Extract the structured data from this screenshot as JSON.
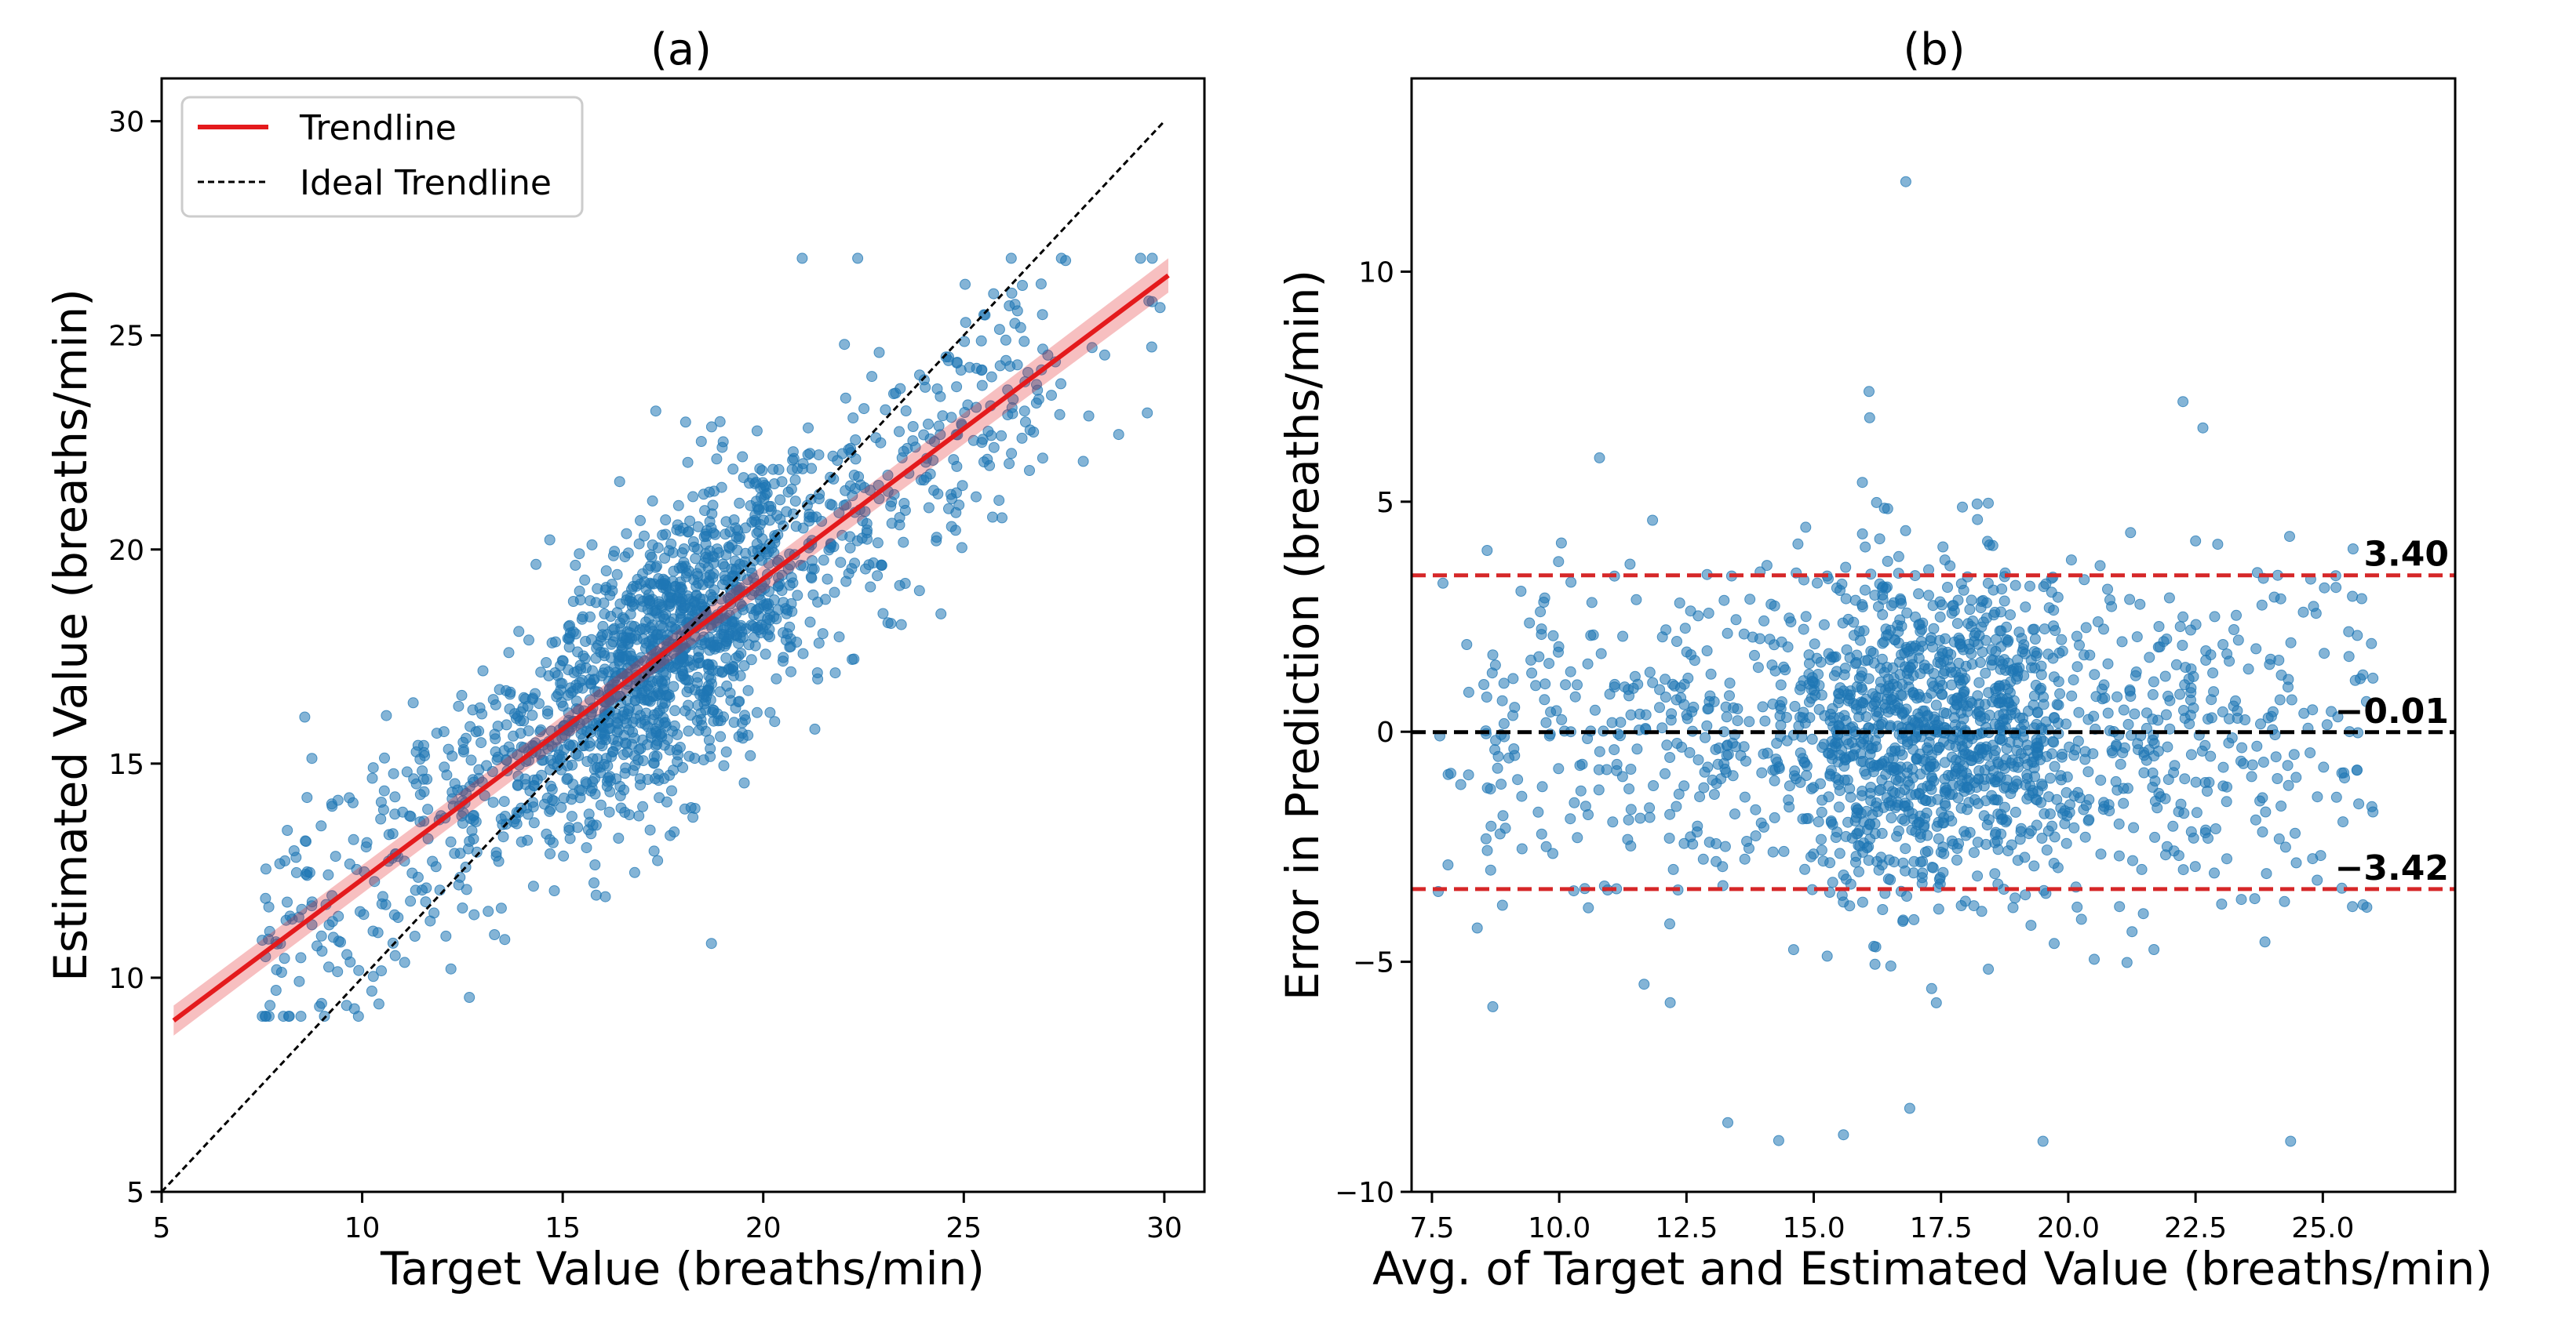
{
  "chart_data": [
    {
      "type": "scatter",
      "title": "(a)",
      "xlabel": "Target Value (breaths/min)",
      "ylabel": "Estimated Value (breaths/min)",
      "xlim": [
        5,
        31
      ],
      "ylim": [
        5,
        31
      ],
      "xticks": [
        5,
        10,
        15,
        20,
        25,
        30
      ],
      "xtick_labels": [
        "5",
        "10",
        "15",
        "20",
        "25",
        "30"
      ],
      "yticks": [
        5,
        10,
        15,
        20,
        25,
        30
      ],
      "ytick_labels": [
        "5",
        "10",
        "15",
        "20",
        "25",
        "30"
      ],
      "grid": false,
      "legend": {
        "position": "top-left",
        "entries": [
          {
            "label": "Trendline",
            "color": "#e41a1c",
            "style": "solid"
          },
          {
            "label": "Ideal Trendline",
            "color": "#000000",
            "style": "dashed"
          }
        ]
      },
      "series": [
        {
          "name": "Samples",
          "kind": "scatter",
          "color": "#1f77b4",
          "opacity": 0.55,
          "n_points": 1800
        },
        {
          "name": "Trendline",
          "kind": "line",
          "color": "#e41a1c",
          "x": [
            5.3,
            30.1
          ],
          "y": [
            9.0,
            26.4
          ],
          "ci_halfwidth": [
            0.35,
            0.3,
            0.4
          ]
        },
        {
          "name": "Ideal Trendline",
          "kind": "line",
          "color": "#000000",
          "style": "dashed",
          "x": [
            5,
            30
          ],
          "y": [
            5,
            30
          ]
        }
      ]
    },
    {
      "type": "scatter",
      "title": "(b)",
      "xlabel": "Avg. of Target and Estimated Value (breaths/min)",
      "ylabel": "Error in Prediction (breaths/min)",
      "xlim": [
        7.1,
        27.6
      ],
      "ylim": [
        -10,
        14.2
      ],
      "xticks": [
        7.5,
        10.0,
        12.5,
        15.0,
        17.5,
        20.0,
        22.5,
        25.0
      ],
      "xtick_labels": [
        "7.5",
        "10.0",
        "12.5",
        "15.0",
        "17.5",
        "20.0",
        "22.5",
        "25.0"
      ],
      "yticks": [
        -10,
        -5,
        0,
        5,
        10
      ],
      "ytick_labels": [
        "−10",
        "−5",
        "0",
        "5",
        "10"
      ],
      "grid": false,
      "series": [
        {
          "name": "Samples",
          "kind": "scatter",
          "color": "#1f77b4",
          "opacity": 0.55,
          "n_points": 1800
        }
      ],
      "reference_lines": [
        {
          "name": "upper-loa",
          "y": 3.4,
          "label": "3.40",
          "color": "#d62728",
          "style": "dashed"
        },
        {
          "name": "mean-bias",
          "y": -0.01,
          "label": "−0.01",
          "color": "#000000",
          "style": "dashed"
        },
        {
          "name": "lower-loa",
          "y": -3.42,
          "label": "−3.42",
          "color": "#d62728",
          "style": "dashed"
        }
      ]
    }
  ]
}
